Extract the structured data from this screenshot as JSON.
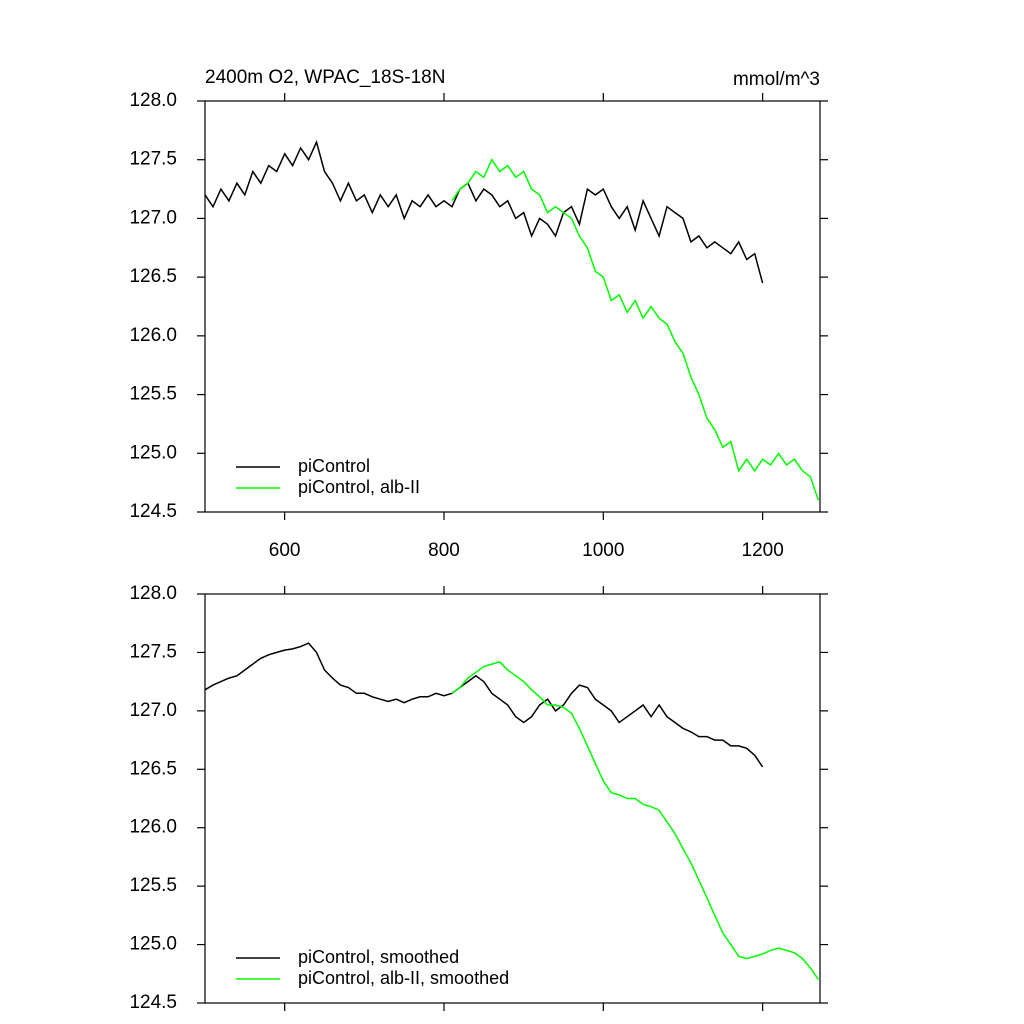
{
  "chart_data": [
    {
      "type": "line",
      "title": "2400m O2, WPAC_18S-18N",
      "units": "mmol/m^3",
      "xlim": [
        500,
        1272
      ],
      "xticks": [
        600,
        800,
        1000,
        1200
      ],
      "ylim": [
        124.5,
        128.0
      ],
      "yticks": [
        {
          "value": 128.0,
          "label": "128.0"
        },
        127.5,
        {
          "value": 127.0,
          "label": "127.0"
        },
        126.5,
        {
          "value": 126.0,
          "label": "126.0"
        },
        125.5,
        {
          "value": 125.0,
          "label": "125.0"
        },
        124.5
      ],
      "legend": "lower left",
      "series": [
        {
          "name": "piControl",
          "color": "#000000",
          "x": [
            500,
            510,
            520,
            530,
            540,
            550,
            560,
            570,
            580,
            590,
            600,
            610,
            620,
            630,
            640,
            650,
            660,
            670,
            680,
            690,
            700,
            710,
            720,
            730,
            740,
            750,
            760,
            770,
            780,
            790,
            800,
            810,
            820,
            830,
            840,
            850,
            860,
            870,
            880,
            890,
            900,
            910,
            920,
            930,
            940,
            950,
            960,
            970,
            980,
            990,
            1000,
            1010,
            1020,
            1030,
            1040,
            1050,
            1060,
            1070,
            1080,
            1090,
            1100,
            1110,
            1120,
            1130,
            1140,
            1150,
            1160,
            1170,
            1180,
            1190,
            1200
          ],
          "values": [
            127.2,
            127.1,
            127.25,
            127.15,
            127.3,
            127.2,
            127.4,
            127.3,
            127.45,
            127.4,
            127.55,
            127.45,
            127.6,
            127.5,
            127.65,
            127.4,
            127.3,
            127.15,
            127.3,
            127.15,
            127.2,
            127.05,
            127.2,
            127.1,
            127.2,
            127.0,
            127.15,
            127.1,
            127.2,
            127.1,
            127.15,
            127.1,
            127.25,
            127.3,
            127.15,
            127.25,
            127.2,
            127.1,
            127.15,
            127.0,
            127.05,
            126.85,
            127.0,
            126.95,
            126.85,
            127.05,
            127.1,
            126.95,
            127.25,
            127.2,
            127.25,
            127.1,
            127.0,
            127.1,
            126.9,
            127.15,
            127.0,
            126.85,
            127.1,
            127.05,
            127.0,
            126.8,
            126.85,
            126.75,
            126.8,
            126.75,
            126.7,
            126.8,
            126.65,
            126.7,
            126.45
          ]
        },
        {
          "name": "piControl, alb-II",
          "color": "#00ff00",
          "x": [
            810,
            820,
            830,
            840,
            850,
            860,
            870,
            880,
            890,
            900,
            910,
            920,
            930,
            940,
            950,
            960,
            970,
            980,
            990,
            1000,
            1010,
            1020,
            1030,
            1040,
            1050,
            1060,
            1070,
            1080,
            1090,
            1100,
            1110,
            1120,
            1130,
            1140,
            1150,
            1160,
            1170,
            1180,
            1190,
            1200,
            1210,
            1220,
            1230,
            1240,
            1250,
            1260,
            1270
          ],
          "values": [
            127.15,
            127.25,
            127.3,
            127.4,
            127.35,
            127.5,
            127.4,
            127.45,
            127.35,
            127.4,
            127.25,
            127.2,
            127.05,
            127.1,
            127.05,
            127.0,
            126.85,
            126.75,
            126.55,
            126.5,
            126.3,
            126.35,
            126.2,
            126.3,
            126.15,
            126.25,
            126.15,
            126.1,
            125.95,
            125.85,
            125.65,
            125.5,
            125.3,
            125.2,
            125.05,
            125.1,
            124.85,
            124.95,
            124.85,
            124.95,
            124.9,
            125.0,
            124.9,
            124.95,
            124.85,
            124.8,
            124.6
          ]
        }
      ]
    },
    {
      "type": "line",
      "xlim": [
        500,
        1272
      ],
      "xticks": [
        600,
        800,
        1000,
        1200
      ],
      "ylim": [
        124.5,
        128.0
      ],
      "yticks": [
        {
          "value": 128.0,
          "label": "128.0"
        },
        127.5,
        {
          "value": 127.0,
          "label": "127.0"
        },
        126.5,
        {
          "value": 126.0,
          "label": "126.0"
        },
        125.5,
        {
          "value": 125.0,
          "label": "125.0"
        },
        124.5
      ],
      "legend": "lower left",
      "series": [
        {
          "name": "piControl, smoothed",
          "color": "#000000",
          "x": [
            500,
            510,
            520,
            530,
            540,
            550,
            560,
            570,
            580,
            590,
            600,
            610,
            620,
            630,
            640,
            650,
            660,
            670,
            680,
            690,
            700,
            710,
            720,
            730,
            740,
            750,
            760,
            770,
            780,
            790,
            800,
            810,
            820,
            830,
            840,
            850,
            860,
            870,
            880,
            890,
            900,
            910,
            920,
            930,
            940,
            950,
            960,
            970,
            980,
            990,
            1000,
            1010,
            1020,
            1030,
            1040,
            1050,
            1060,
            1070,
            1080,
            1090,
            1100,
            1110,
            1120,
            1130,
            1140,
            1150,
            1160,
            1170,
            1180,
            1190,
            1200
          ],
          "values": [
            127.18,
            127.22,
            127.25,
            127.28,
            127.3,
            127.35,
            127.4,
            127.45,
            127.48,
            127.5,
            127.52,
            127.53,
            127.55,
            127.58,
            127.5,
            127.35,
            127.28,
            127.22,
            127.2,
            127.15,
            127.15,
            127.12,
            127.1,
            127.08,
            127.1,
            127.07,
            127.1,
            127.12,
            127.12,
            127.15,
            127.13,
            127.15,
            127.2,
            127.25,
            127.3,
            127.25,
            127.15,
            127.1,
            127.05,
            126.95,
            126.9,
            126.95,
            127.05,
            127.1,
            127.0,
            127.05,
            127.15,
            127.22,
            127.2,
            127.1,
            127.05,
            127.0,
            126.9,
            126.95,
            127.0,
            127.05,
            126.95,
            127.05,
            126.95,
            126.9,
            126.85,
            126.82,
            126.78,
            126.78,
            126.75,
            126.75,
            126.7,
            126.7,
            126.68,
            126.62,
            126.52
          ]
        },
        {
          "name": "piControl, alb-II, smoothed",
          "color": "#00ff00",
          "x": [
            810,
            820,
            830,
            840,
            850,
            860,
            870,
            880,
            890,
            900,
            910,
            920,
            930,
            940,
            950,
            960,
            970,
            980,
            990,
            1000,
            1010,
            1020,
            1030,
            1040,
            1050,
            1060,
            1070,
            1080,
            1090,
            1100,
            1110,
            1120,
            1130,
            1140,
            1150,
            1160,
            1170,
            1180,
            1190,
            1200,
            1210,
            1220,
            1230,
            1240,
            1250,
            1260,
            1270
          ],
          "values": [
            127.15,
            127.2,
            127.28,
            127.33,
            127.38,
            127.4,
            127.42,
            127.35,
            127.3,
            127.25,
            127.18,
            127.12,
            127.05,
            127.05,
            127.03,
            126.98,
            126.85,
            126.7,
            126.55,
            126.4,
            126.3,
            126.28,
            126.25,
            126.25,
            126.2,
            126.18,
            126.15,
            126.05,
            125.95,
            125.82,
            125.7,
            125.55,
            125.4,
            125.25,
            125.1,
            125.0,
            124.9,
            124.88,
            124.9,
            124.92,
            124.95,
            124.97,
            124.95,
            124.93,
            124.88,
            124.8,
            124.7
          ]
        }
      ]
    }
  ]
}
